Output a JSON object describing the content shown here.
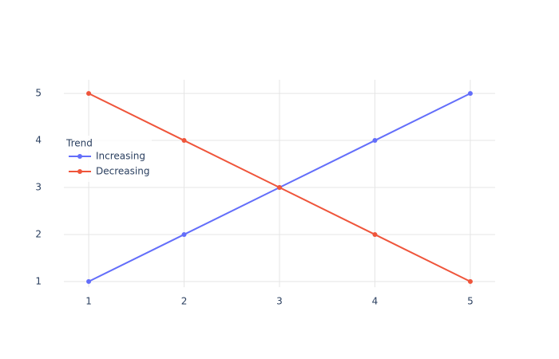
{
  "chart_data": {
    "type": "line",
    "x": [
      1,
      2,
      3,
      4,
      5
    ],
    "series": [
      {
        "name": "Increasing",
        "color": "#636efa",
        "values": [
          1,
          2,
          3,
          4,
          5
        ]
      },
      {
        "name": "Decreasing",
        "color": "#ef553b",
        "values": [
          5,
          4,
          3,
          2,
          1
        ]
      }
    ],
    "legend_title": "Trend",
    "legend_position": "left",
    "xlim": [
      0.74,
      5.26
    ],
    "xticks": [
      1,
      2,
      3,
      4,
      5
    ],
    "ylim": [
      0.71,
      5.29
    ],
    "yticks": [
      1,
      2,
      3,
      4,
      5
    ],
    "grid": true
  }
}
